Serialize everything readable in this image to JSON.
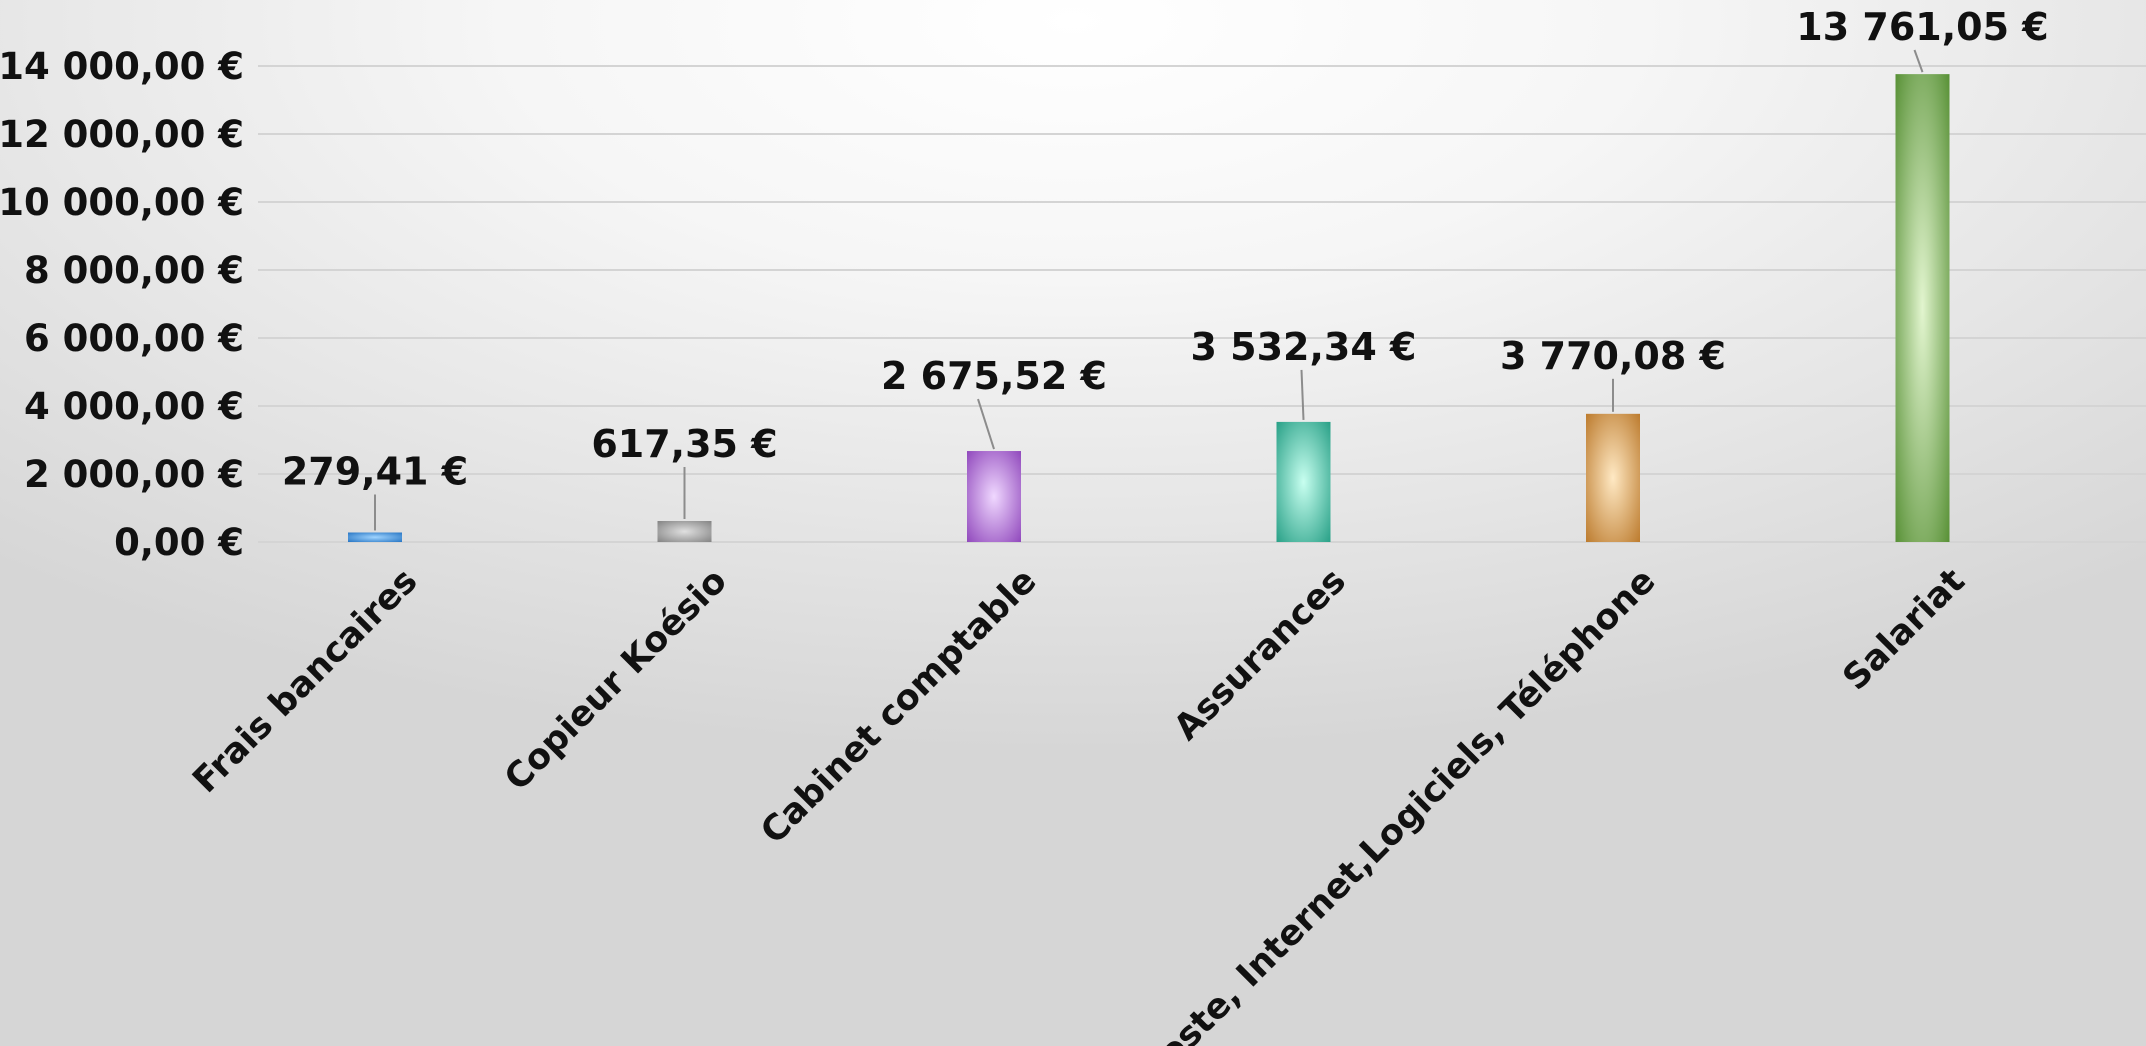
{
  "chart_data": {
    "type": "bar",
    "title": "",
    "xlabel": "",
    "ylabel": "",
    "ylim": [
      0,
      14000
    ],
    "y_ticks": [
      0,
      2000,
      4000,
      6000,
      8000,
      10000,
      12000,
      14000
    ],
    "y_tick_labels": [
      "0,00 €",
      "2 000,00 €",
      "4 000,00 €",
      "6 000,00 €",
      "8 000,00 €",
      "10 000,00 €",
      "12 000,00 €",
      "14 000,00 €"
    ],
    "grid": true,
    "legend": "none",
    "categories": [
      "Frais bancaires",
      "Copieur Koésio",
      "Cabinet comptable",
      "Assurances",
      "Poste, Internet,Logiciels, Téléphone",
      "Salariat"
    ],
    "values": [
      279.41,
      617.35,
      2675.52,
      3532.34,
      3770.08,
      13761.05
    ],
    "data_labels": [
      "279,41 €",
      "617,35 €",
      "2 675,52 €",
      "3 532,34 €",
      "3 770,08 €",
      "13 761,05 €"
    ],
    "colors": [
      {
        "edge": "#1f6fc0",
        "center": "#9fd4ff"
      },
      {
        "edge": "#7d7d7d",
        "center": "#e0e0e0"
      },
      {
        "edge": "#8a3fb8",
        "center": "#f0d8ff"
      },
      {
        "edge": "#1e9a80",
        "center": "#c8fff0"
      },
      {
        "edge": "#b87424",
        "center": "#ffe9c4"
      },
      {
        "edge": "#4f8a2c",
        "center": "#e2f5cf"
      }
    ]
  }
}
